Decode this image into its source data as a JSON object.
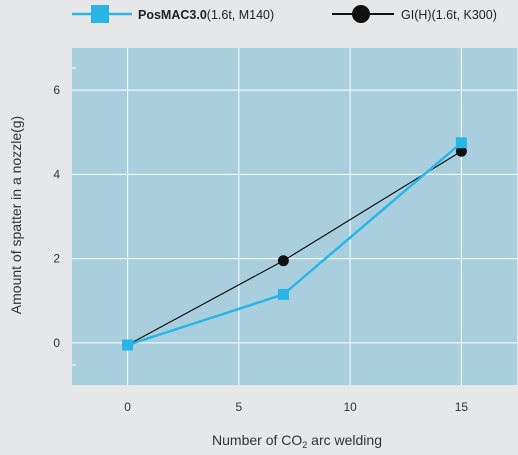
{
  "chart_data": {
    "type": "line",
    "x": [
      0,
      7,
      15
    ],
    "series": [
      {
        "name_bold": "PosMAC3.0",
        "name_rest": "(1.6t, M140)",
        "values": [
          -0.05,
          1.15,
          4.75
        ],
        "color": "#29b6e6",
        "marker": "square"
      },
      {
        "name_bold": "",
        "name_rest": "GI(H)(1.6t, K300)",
        "values": [
          -0.05,
          1.95,
          4.55
        ],
        "color": "#111111",
        "marker": "circle"
      }
    ],
    "xlabel_pre": "Number of CO",
    "xlabel_sub": "2",
    "xlabel_post": " arc welding",
    "ylabel": "Amount of spatter in a nozzle(g)",
    "xticks": [
      "0",
      "5",
      "10",
      "15"
    ],
    "yticks": [
      "0",
      "2",
      "4",
      "6"
    ],
    "xlim": [
      -2.5,
      17.5
    ],
    "ylim": [
      -1,
      7
    ],
    "grid": true,
    "legend_position": "top"
  },
  "colors": {
    "plot_background": "#a9cfdf",
    "page_background": "#e6e7e8",
    "grid": "#ffffff"
  }
}
